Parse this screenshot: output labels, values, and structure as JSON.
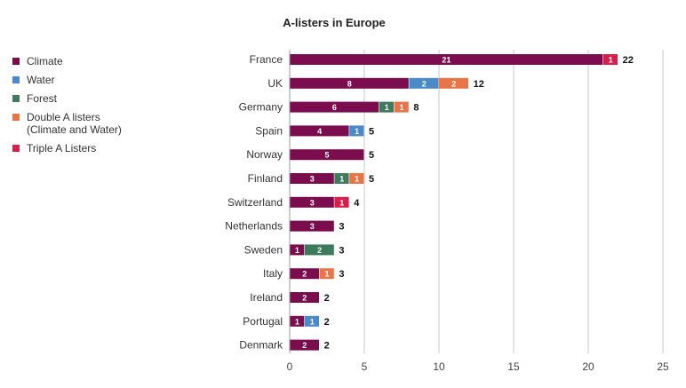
{
  "chart_data": {
    "type": "bar",
    "orientation": "horizontal",
    "stacked": true,
    "title": "A-listers in Europe",
    "categories": [
      "France",
      "UK",
      "Germany",
      "Spain",
      "Norway",
      "Finland",
      "Switzerland",
      "Netherlands",
      "Sweden",
      "Italy",
      "Ireland",
      "Portugal",
      "Denmark"
    ],
    "series": [
      {
        "name": "Climate",
        "color": "#7b0c4d",
        "values": [
          21,
          8,
          6,
          4,
          5,
          3,
          3,
          3,
          1,
          2,
          2,
          1,
          2
        ]
      },
      {
        "name": "Water",
        "color": "#4a8ac9",
        "values": [
          0,
          2,
          0,
          1,
          0,
          0,
          0,
          0,
          0,
          0,
          0,
          1,
          0
        ]
      },
      {
        "name": "Forest",
        "color": "#3e7a5e",
        "values": [
          0,
          0,
          1,
          0,
          0,
          1,
          0,
          0,
          2,
          0,
          0,
          0,
          0
        ]
      },
      {
        "name": "Double A listers (Climate and Water)",
        "color": "#e87548",
        "values": [
          0,
          2,
          1,
          0,
          0,
          1,
          0,
          0,
          0,
          1,
          0,
          0,
          0
        ]
      },
      {
        "name": "Triple A Listers",
        "color": "#d81e4a",
        "values": [
          1,
          0,
          0,
          0,
          0,
          0,
          1,
          0,
          0,
          0,
          0,
          0,
          0
        ]
      }
    ],
    "totals": [
      22,
      12,
      8,
      5,
      5,
      5,
      4,
      3,
      3,
      3,
      2,
      2,
      2
    ],
    "xlim": [
      0,
      25
    ],
    "xticks": [
      0,
      5,
      10,
      15,
      20,
      25
    ],
    "grid": true,
    "legend_position": "left"
  },
  "legend": {
    "items": [
      {
        "lines": [
          "Climate"
        ],
        "color": "#7b0c4d"
      },
      {
        "lines": [
          "Water"
        ],
        "color": "#4a8ac9"
      },
      {
        "lines": [
          "Forest"
        ],
        "color": "#3e7a5e"
      },
      {
        "lines": [
          "Double A listers",
          "(Climate and Water)"
        ],
        "color": "#e87548"
      },
      {
        "lines": [
          "Triple A Listers"
        ],
        "color": "#d81e4a"
      }
    ]
  }
}
